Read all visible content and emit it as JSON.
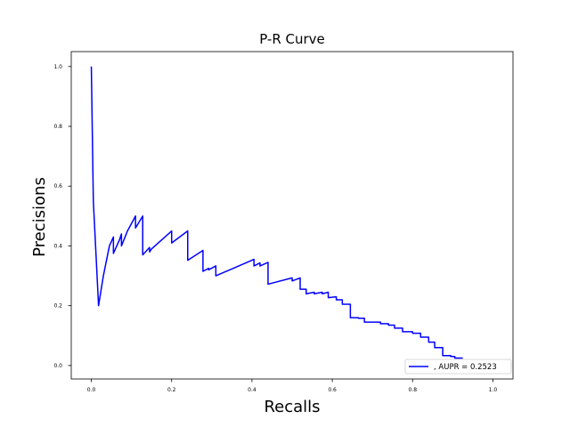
{
  "chart_data": {
    "type": "line",
    "title": "P-R Curve",
    "xlabel": "Recalls",
    "ylabel": "Precisions",
    "xlim": [
      -0.05,
      1.05
    ],
    "ylim": [
      -0.045,
      1.05
    ],
    "xticks": [
      0.0,
      0.2,
      0.4,
      0.6,
      0.8,
      1.0
    ],
    "xtick_labels": [
      "0.0",
      "0.2",
      "0.4",
      "0.6",
      "0.8",
      "1.0"
    ],
    "yticks": [
      0.0,
      0.2,
      0.4,
      0.6,
      0.8,
      1.0
    ],
    "ytick_labels": [
      "0.0",
      "0.2",
      "0.4",
      "0.6",
      "0.8",
      "1.0"
    ],
    "grid": false,
    "legend_position": "lower right",
    "series": [
      {
        "name": ", AUPR = 0.2523",
        "color": "#0000ff",
        "x": [
          0.0,
          0.005,
          0.018,
          0.03,
          0.045,
          0.055,
          0.055,
          0.07,
          0.075,
          0.075,
          0.09,
          0.11,
          0.11,
          0.128,
          0.128,
          0.145,
          0.145,
          0.15,
          0.2,
          0.2,
          0.24,
          0.24,
          0.278,
          0.278,
          0.292,
          0.292,
          0.31,
          0.31,
          0.405,
          0.405,
          0.42,
          0.42,
          0.44,
          0.44,
          0.5,
          0.5,
          0.52,
          0.52,
          0.535,
          0.535,
          0.555,
          0.555,
          0.575,
          0.575,
          0.59,
          0.59,
          0.61,
          0.61,
          0.625,
          0.625,
          0.645,
          0.645,
          0.665,
          0.665,
          0.68,
          0.68,
          0.72,
          0.72,
          0.74,
          0.74,
          0.755,
          0.755,
          0.775,
          0.775,
          0.8,
          0.8,
          0.82,
          0.82,
          0.84,
          0.84,
          0.855,
          0.855,
          0.875,
          0.875,
          0.895,
          0.895,
          0.905,
          0.905,
          0.925
        ],
        "y": [
          1.0,
          0.55,
          0.2,
          0.3,
          0.4,
          0.43,
          0.375,
          0.42,
          0.44,
          0.4,
          0.45,
          0.5,
          0.46,
          0.5,
          0.37,
          0.395,
          0.38,
          0.39,
          0.45,
          0.41,
          0.45,
          0.352,
          0.385,
          0.315,
          0.325,
          0.32,
          0.333,
          0.3,
          0.355,
          0.333,
          0.343,
          0.333,
          0.345,
          0.272,
          0.293,
          0.283,
          0.293,
          0.255,
          0.255,
          0.24,
          0.245,
          0.24,
          0.245,
          0.24,
          0.245,
          0.227,
          0.23,
          0.22,
          0.22,
          0.205,
          0.205,
          0.16,
          0.16,
          0.158,
          0.158,
          0.145,
          0.145,
          0.14,
          0.14,
          0.135,
          0.135,
          0.125,
          0.125,
          0.113,
          0.113,
          0.108,
          0.108,
          0.095,
          0.095,
          0.078,
          0.078,
          0.06,
          0.06,
          0.033,
          0.033,
          0.03,
          0.03,
          0.025,
          0.025
        ]
      }
    ]
  }
}
